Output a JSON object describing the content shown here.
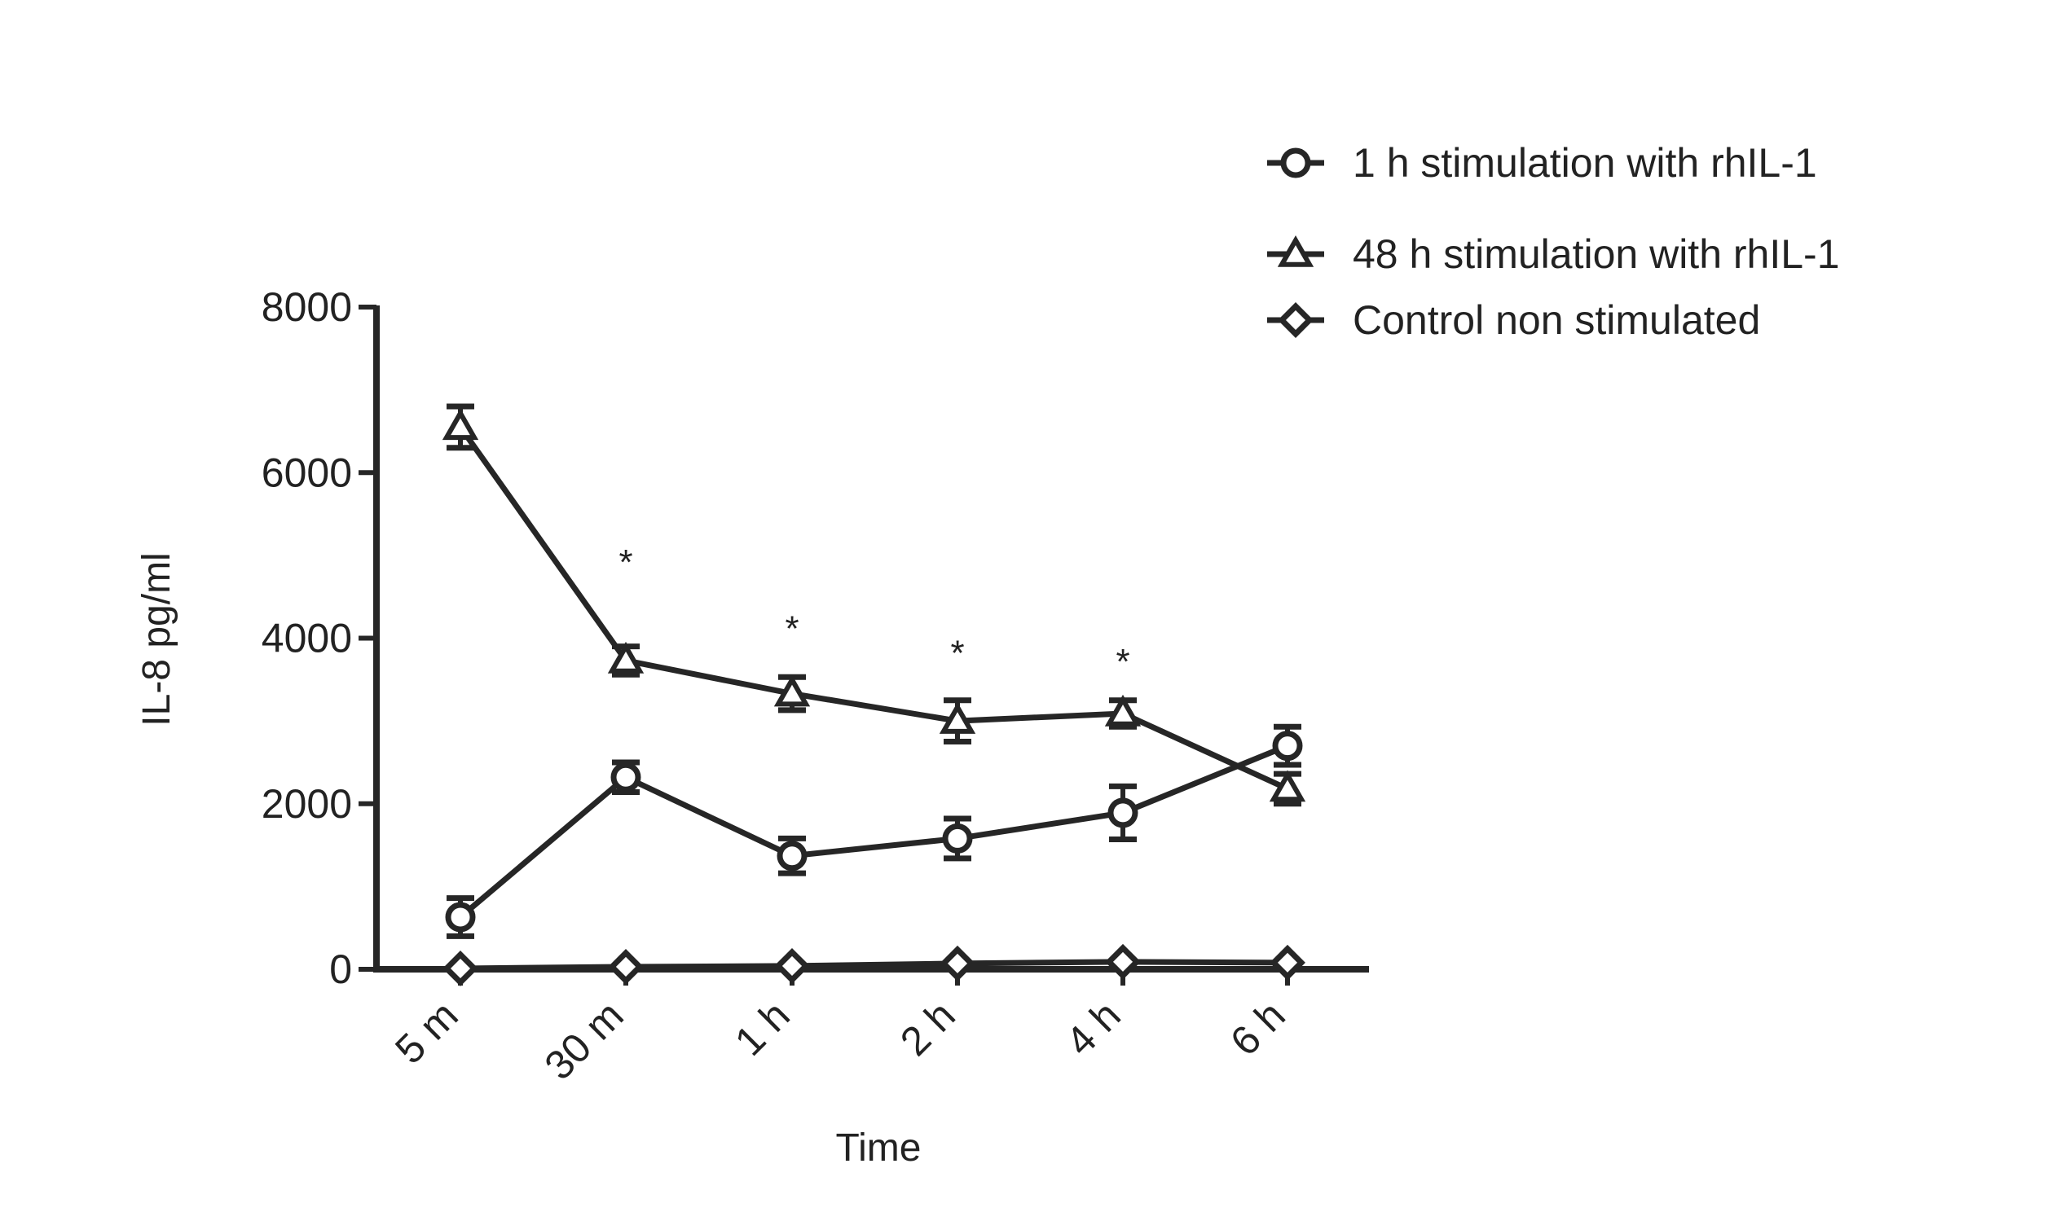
{
  "chart_data": {
    "type": "line",
    "title": "",
    "xlabel": "Time",
    "ylabel": "IL-8 pg/ml",
    "categories": [
      "5 m",
      "30 m",
      "1 h",
      "2 h",
      "4 h",
      "6 h"
    ],
    "ylim": [
      0,
      8000
    ],
    "yticks": [
      "0",
      "2000",
      "4000",
      "6000",
      "8000"
    ],
    "yticks_values": [
      0,
      2000,
      4000,
      6000,
      8000
    ],
    "grid": false,
    "legend_position": "top-right",
    "series": [
      {
        "name": "1 h stimulation with rhIL-1",
        "marker": "circle",
        "values": [
          630,
          2320,
          1370,
          1580,
          1890,
          2700
        ],
        "errors": [
          230,
          180,
          210,
          240,
          320,
          230
        ]
      },
      {
        "name": "48 h stimulation with rhIL-1",
        "marker": "triangle",
        "values": [
          6550,
          3730,
          3330,
          3000,
          3090,
          2180
        ],
        "errors": [
          250,
          170,
          200,
          250,
          160,
          180
        ]
      },
      {
        "name": "Control non stimulated",
        "marker": "diamond",
        "values": [
          10,
          30,
          40,
          70,
          90,
          80
        ],
        "errors": [
          0,
          0,
          0,
          0,
          0,
          0
        ]
      }
    ],
    "annotations": [
      {
        "category": "30 m",
        "text": "*",
        "y": 4950
      },
      {
        "category": "1 h",
        "text": "*",
        "y": 4150
      },
      {
        "category": "2 h",
        "text": "*",
        "y": 3850
      },
      {
        "category": "4 h",
        "text": "*",
        "y": 3750
      }
    ]
  }
}
